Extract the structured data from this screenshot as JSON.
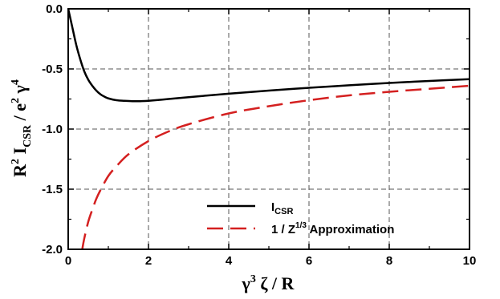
{
  "chart_data": {
    "type": "line",
    "title": "",
    "xlabel": {
      "base": "γ",
      "sup": "3",
      "rest": " ζ / R"
    },
    "ylabel": {
      "p1": "R",
      "p1_sup": "2",
      "p2": " I",
      "p2_sub": "CSR",
      "p3": " / e",
      "p3_sup": "2",
      "p4": " γ",
      "p4_sup": "4"
    },
    "xlim": [
      0,
      10
    ],
    "ylim": [
      -2.0,
      0.0
    ],
    "x_ticks": [
      0,
      2,
      4,
      6,
      8,
      10
    ],
    "x_tick_labels": [
      "0",
      "2",
      "4",
      "6",
      "8",
      "10"
    ],
    "y_ticks": [
      0.0,
      -0.5,
      -1.0,
      -1.5,
      -2.0
    ],
    "y_tick_labels": [
      "0.0",
      "-0.5",
      "-1.0",
      "-1.5",
      "-2.0"
    ],
    "grid": true,
    "legend_position": "bottom-right",
    "series": [
      {
        "name": "I",
        "name_sub": "CSR",
        "color": "#000000",
        "style": "solid",
        "x": [
          0,
          0.1,
          0.2,
          0.3,
          0.4,
          0.5,
          0.6,
          0.7,
          0.8,
          0.9,
          1.0,
          1.2,
          1.4,
          1.6,
          1.8,
          2.0,
          2.5,
          3.0,
          3.5,
          4.0,
          5.0,
          6.0,
          7.0,
          8.0,
          9.0,
          10.0
        ],
        "y": [
          0.0,
          -0.15,
          -0.3,
          -0.42,
          -0.52,
          -0.59,
          -0.64,
          -0.68,
          -0.71,
          -0.73,
          -0.745,
          -0.76,
          -0.765,
          -0.768,
          -0.768,
          -0.765,
          -0.75,
          -0.735,
          -0.72,
          -0.706,
          -0.68,
          -0.657,
          -0.636,
          -0.617,
          -0.6,
          -0.585
        ]
      },
      {
        "name": "1 / Z",
        "name_sup": "1/3",
        "name_rest": " Approximation",
        "color": "#d42020",
        "style": "dashed",
        "x": [
          0.35,
          0.4,
          0.5,
          0.6,
          0.7,
          0.8,
          1.0,
          1.2,
          1.5,
          2.0,
          2.5,
          3.0,
          4.0,
          5.0,
          6.0,
          7.0,
          8.0,
          9.0,
          10.0
        ],
        "y": [
          -2.0,
          -1.91,
          -1.77,
          -1.67,
          -1.58,
          -1.51,
          -1.39,
          -1.31,
          -1.21,
          -1.1,
          -1.02,
          -0.96,
          -0.87,
          -0.81,
          -0.76,
          -0.72,
          -0.69,
          -0.665,
          -0.64
        ]
      }
    ]
  }
}
